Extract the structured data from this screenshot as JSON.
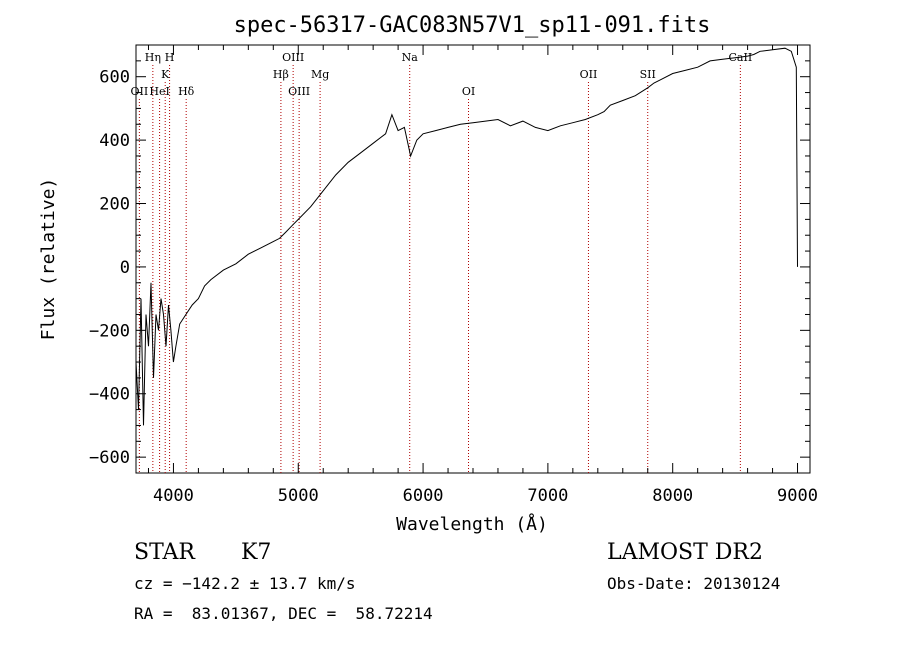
{
  "chart_data": {
    "type": "line",
    "title": "spec-56317-GAC083N57V1_sp11-091.fits",
    "xlabel": "Wavelength (Å)",
    "ylabel": "Flux (relative)",
    "xlim": [
      3700,
      9100
    ],
    "ylim": [
      -650,
      700
    ],
    "xticks": [
      4000,
      5000,
      6000,
      7000,
      8000,
      9000
    ],
    "yticks": [
      -600,
      -400,
      -200,
      0,
      200,
      400,
      600
    ],
    "grid": false,
    "series": [
      {
        "x": [
          3700,
          3720,
          3740,
          3760,
          3780,
          3800,
          3820,
          3840,
          3860,
          3880,
          3900,
          3920,
          3940,
          3960,
          3980,
          4000,
          4020,
          4050,
          4100,
          4150,
          4200,
          4250,
          4300,
          4400,
          4500,
          4600,
          4700,
          4800,
          4850,
          4900,
          4950,
          5000,
          5100,
          5200,
          5300,
          5400,
          5500,
          5600,
          5700,
          5750,
          5800,
          5850,
          5900,
          5950,
          6000,
          6100,
          6200,
          6300,
          6400,
          6500,
          6600,
          6700,
          6800,
          6900,
          7000,
          7100,
          7200,
          7300,
          7400,
          7450,
          7500,
          7600,
          7700,
          7800,
          7850,
          7900,
          8000,
          8100,
          8200,
          8300,
          8400,
          8500,
          8600,
          8650,
          8700,
          8800,
          8900,
          8950,
          8990,
          9000
        ],
        "y": [
          -300,
          -450,
          -100,
          -500,
          -150,
          -250,
          -50,
          -350,
          -150,
          -200,
          -100,
          -150,
          -250,
          -120,
          -200,
          -300,
          -250,
          -180,
          -150,
          -120,
          -100,
          -60,
          -40,
          -10,
          10,
          40,
          60,
          80,
          90,
          110,
          130,
          150,
          190,
          240,
          290,
          330,
          360,
          390,
          420,
          480,
          430,
          440,
          350,
          400,
          420,
          430,
          440,
          450,
          455,
          460,
          465,
          445,
          460,
          440,
          430,
          445,
          455,
          465,
          480,
          490,
          510,
          525,
          540,
          565,
          580,
          590,
          610,
          620,
          630,
          650,
          655,
          660,
          665,
          670,
          680,
          685,
          690,
          680,
          630,
          0
        ]
      }
    ],
    "lines": [
      {
        "label": "OII",
        "x": 3727,
        "row": 3
      },
      {
        "label": "Hη",
        "x": 3835,
        "row": 1
      },
      {
        "label": "H",
        "x": 3969,
        "row": 1
      },
      {
        "label": "K",
        "x": 3934,
        "row": 2
      },
      {
        "label": "HeI",
        "x": 3889,
        "row": 3
      },
      {
        "label": "Hδ",
        "x": 4102,
        "row": 3
      },
      {
        "label": "OIII",
        "x": 4959,
        "row": 1
      },
      {
        "label": "Hβ",
        "x": 4861,
        "row": 2
      },
      {
        "label": "OIII",
        "x": 5007,
        "row": 3
      },
      {
        "label": "Mg",
        "x": 5175,
        "row": 2
      },
      {
        "label": "Na",
        "x": 5893,
        "row": 1
      },
      {
        "label": "OI",
        "x": 6364,
        "row": 3
      },
      {
        "label": "OII",
        "x": 7325,
        "row": 2
      },
      {
        "label": "SII",
        "x": 7800,
        "row": 2
      },
      {
        "label": "CaII",
        "x": 8542,
        "row": 1
      }
    ],
    "annotations": {
      "class": "STAR",
      "subclass": "K7",
      "survey": "LAMOST DR2",
      "cz": "cz = −142.2 ± 13.7 km/s",
      "obs_date": "Obs-Date: 20130124",
      "coords": "RA =  83.01367, DEC =  58.72214"
    }
  }
}
